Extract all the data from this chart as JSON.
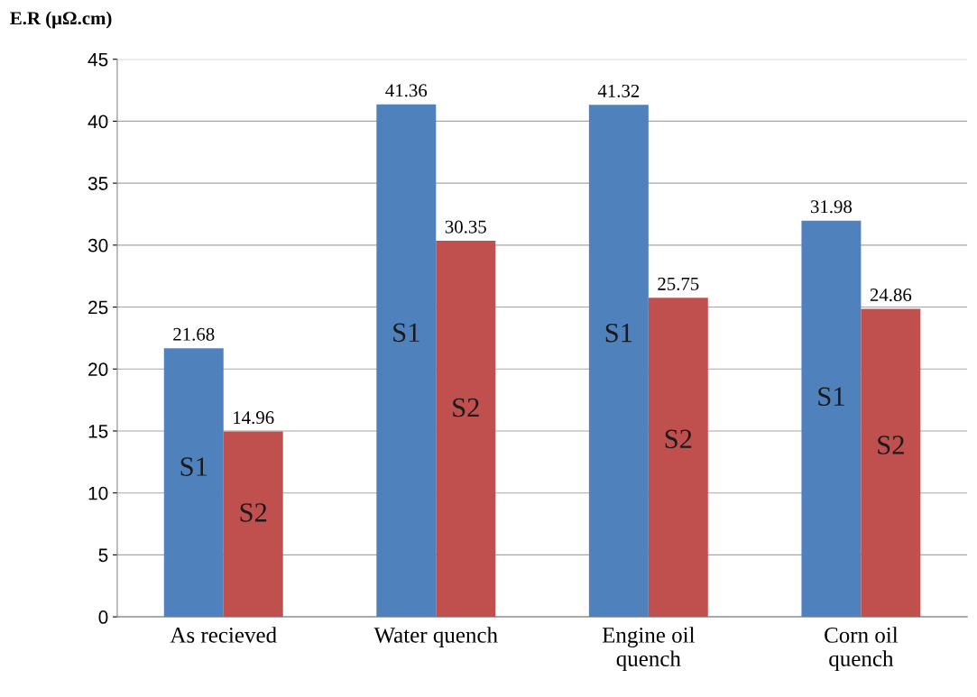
{
  "chart_data": {
    "type": "bar",
    "ylabel": "E.R (μΩ.cm)",
    "categories": [
      "As recieved",
      "Water quench",
      "Engine oil\nquench",
      "Corn oil\nquench"
    ],
    "series": [
      {
        "name": "S1",
        "color": "#4f81bd",
        "values": [
          21.68,
          41.36,
          41.32,
          31.98
        ]
      },
      {
        "name": "S2",
        "color": "#c0504d",
        "values": [
          14.96,
          30.35,
          25.75,
          24.86
        ]
      }
    ],
    "ylim": [
      0,
      45
    ],
    "yticks": [
      0,
      5,
      10,
      15,
      20,
      25,
      30,
      35,
      40,
      45
    ],
    "grid": "y",
    "data_labels": true
  }
}
